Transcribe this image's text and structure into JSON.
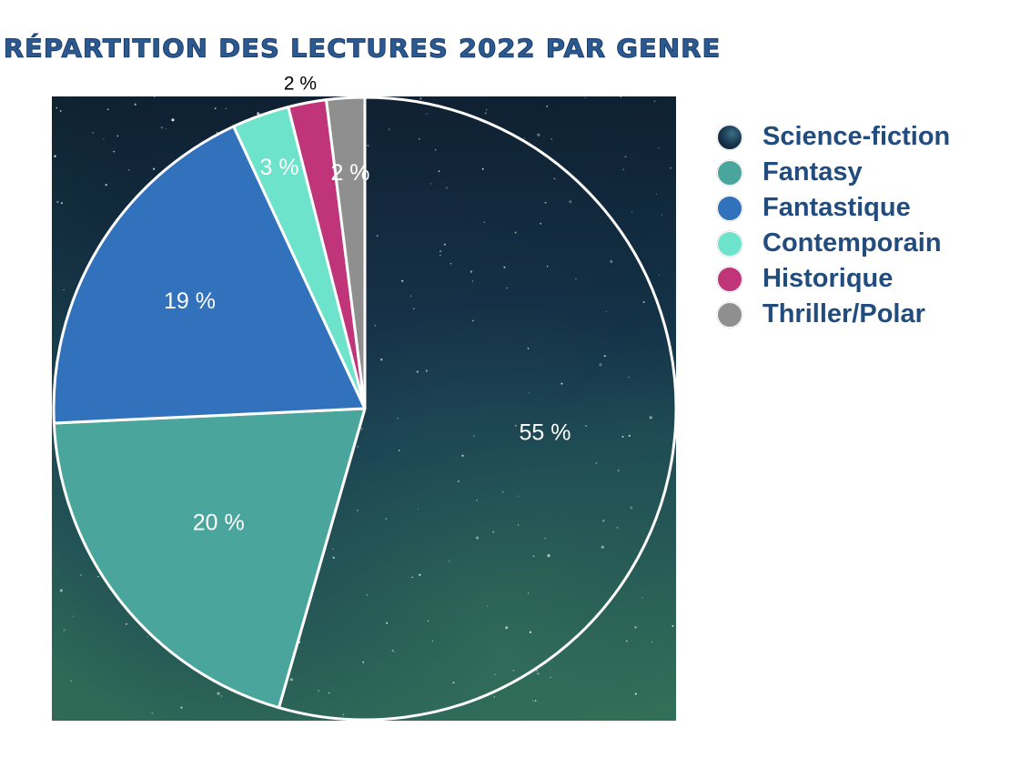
{
  "chart_data": {
    "type": "pie",
    "title": "Répartition des lectures 2022 par genre",
    "categories": [
      "Science-fiction",
      "Fantasy",
      "Fantastique",
      "Contemporain",
      "Historique",
      "Thriller/Polar"
    ],
    "values": [
      55,
      20,
      19,
      3,
      2,
      2
    ],
    "data_labels": [
      "55 %",
      "20 %",
      "19 %",
      "3 %",
      "2 %",
      "2 %"
    ],
    "colors": [
      "#16324a",
      "#4aa69c",
      "#3272bc",
      "#6ee3cc",
      "#c0357a",
      "#8f8f8f"
    ],
    "legend_position": "right",
    "start_angle": "12 o'clock",
    "direction": "clockwise",
    "background": "night sky photograph"
  },
  "legend": {
    "items": [
      {
        "label": "Science-fiction",
        "color": "#16324a"
      },
      {
        "label": "Fantasy",
        "color": "#4aa69c"
      },
      {
        "label": "Fantastique",
        "color": "#3272bc"
      },
      {
        "label": "Contemporain",
        "color": "#6ee3cc"
      },
      {
        "label": "Historique",
        "color": "#c0357a"
      },
      {
        "label": "Thriller/Polar",
        "color": "#8f8f8f"
      }
    ]
  }
}
